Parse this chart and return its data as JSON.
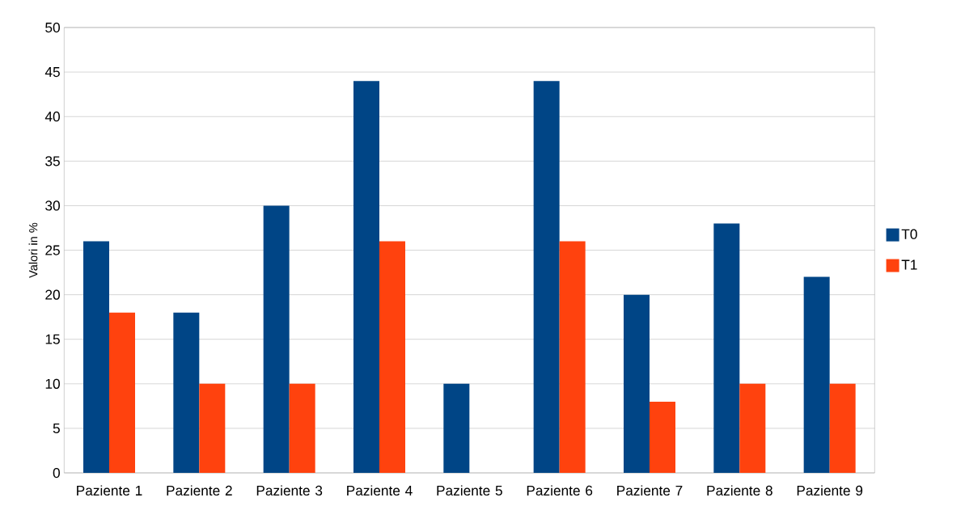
{
  "chart_data": {
    "type": "bar",
    "ylabel": "Valori in %",
    "categories": [
      "Paziente 1",
      "Paziente 2",
      "Paziente 3",
      "Paziente 4",
      "Paziente 5",
      "Paziente 6",
      "Paziente 7",
      "Paziente 8",
      "Paziente 9"
    ],
    "series": [
      {
        "name": "T0",
        "color": "#004586",
        "values": [
          26,
          18,
          30,
          44,
          10,
          44,
          20,
          28,
          22
        ]
      },
      {
        "name": "T1",
        "color": "#ff420e",
        "values": [
          18,
          10,
          10,
          26,
          0,
          26,
          8,
          10,
          10
        ]
      }
    ],
    "ylim": [
      0,
      50
    ],
    "yticks": [
      0,
      5,
      10,
      15,
      20,
      25,
      30,
      35,
      40,
      45,
      50
    ],
    "grid": "y",
    "legend": "right"
  }
}
